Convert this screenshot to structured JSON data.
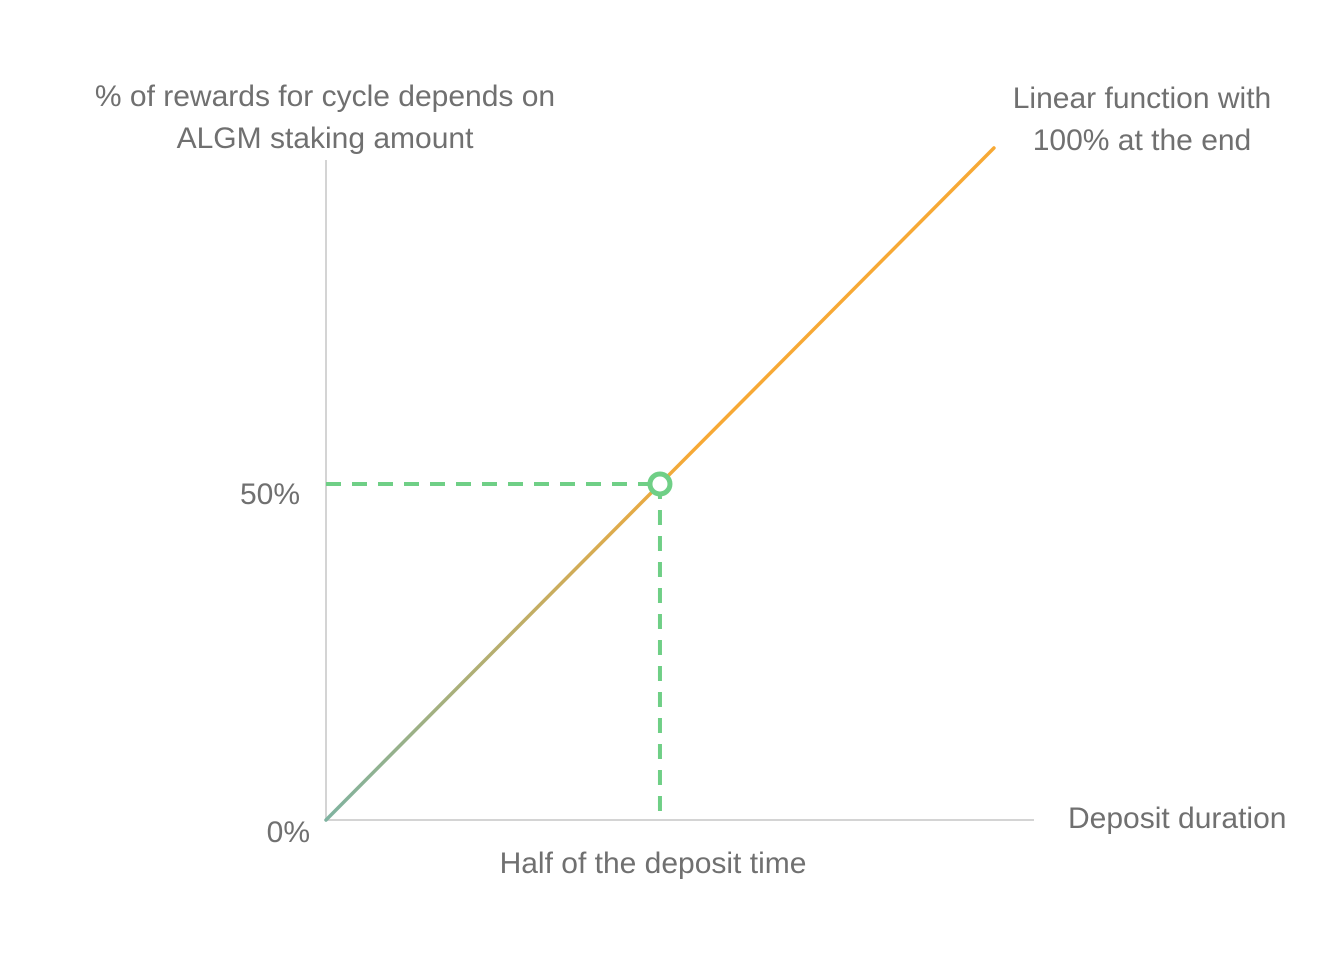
{
  "chart_data": {
    "type": "line",
    "title": "",
    "ylabel": [
      "% of rewards for cycle depends on",
      "ALGM staking amount"
    ],
    "xlabel": "Deposit duration",
    "x": [
      0,
      1
    ],
    "series": [
      {
        "values": [
          0,
          100
        ]
      }
    ],
    "ylim": [
      0,
      100
    ],
    "xlim": [
      0,
      1.06
    ],
    "y_ticks": [
      {
        "value": 0,
        "label": "0%"
      },
      {
        "value": 50,
        "label": "50%"
      }
    ],
    "highlight_point": {
      "x": 0.5,
      "y": 50
    },
    "annotations": {
      "line": [
        "Linear function with",
        "100% at the end"
      ],
      "x_marker": "Half of the deposit time"
    },
    "grid": false,
    "colors": {
      "line_start": "#7fb3a0",
      "line_end": "#f7a935",
      "marker": "#6fcf86",
      "guide": "#6fcf86",
      "axis": "#d4d4d4"
    }
  }
}
